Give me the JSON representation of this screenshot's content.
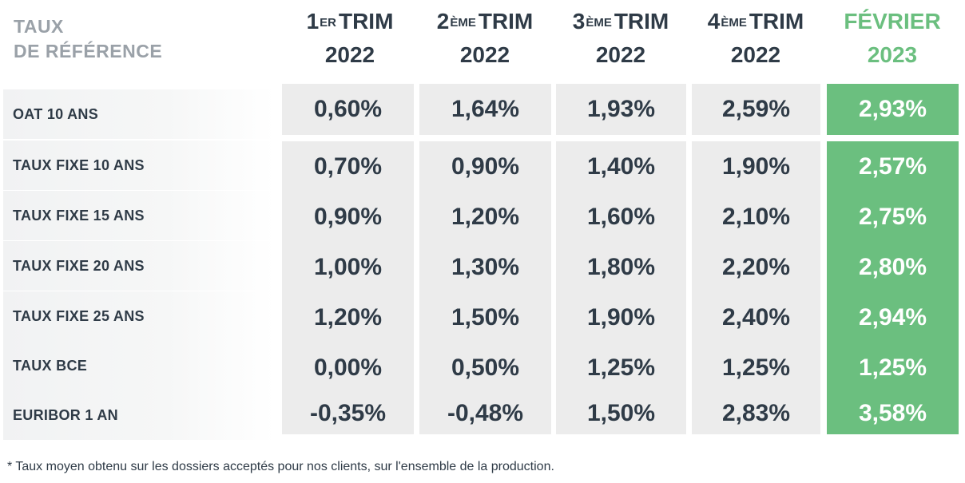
{
  "corner_title": {
    "line1": "TAUX",
    "line2": "DE RÉFÉRENCE"
  },
  "columns": [
    {
      "num": "1",
      "sup": "ER",
      "word": "TRIM",
      "year": "2022"
    },
    {
      "num": "2",
      "sup": "ÈME",
      "word": "TRIM",
      "year": "2022"
    },
    {
      "num": "3",
      "sup": "ÈME",
      "word": "TRIM",
      "year": "2022"
    },
    {
      "num": "4",
      "sup": "ÈME",
      "word": "TRIM",
      "year": "2022"
    },
    {
      "label": "FÉVRIER",
      "year": "2023"
    }
  ],
  "rows": [
    {
      "label": "OAT 10 ANS",
      "values": [
        "0,60%",
        "1,64%",
        "1,93%",
        "2,59%",
        "2,93%"
      ]
    },
    {
      "label": "TAUX FIXE 10 ANS",
      "values": [
        "0,70%",
        "0,90%",
        "1,40%",
        "1,90%",
        "2,57%"
      ]
    },
    {
      "label": "TAUX FIXE 15 ANS",
      "values": [
        "0,90%",
        "1,20%",
        "1,60%",
        "2,10%",
        "2,75%"
      ]
    },
    {
      "label": "TAUX FIXE 20 ANS",
      "values": [
        "1,00%",
        "1,30%",
        "1,80%",
        "2,20%",
        "2,80%"
      ]
    },
    {
      "label": "TAUX FIXE 25 ANS",
      "values": [
        "1,20%",
        "1,50%",
        "1,90%",
        "2,40%",
        "2,94%"
      ]
    },
    {
      "label": "TAUX BCE",
      "values": [
        "0,00%",
        "0,50%",
        "1,25%",
        "1,25%",
        "1,25%"
      ]
    },
    {
      "label": "EURIBOR 1 AN",
      "values": [
        "-0,35%",
        "-0,48%",
        "1,50%",
        "2,83%",
        "3,58%"
      ]
    }
  ],
  "footnote": "* Taux moyen obtenu sur les dossiers acceptés pour nos clients, sur l'ensemble de la production.",
  "colors": {
    "highlight": "#6bbf7f",
    "cell_bg": "#ececec",
    "text": "#2f3b47",
    "muted": "#9aa1a8"
  }
}
